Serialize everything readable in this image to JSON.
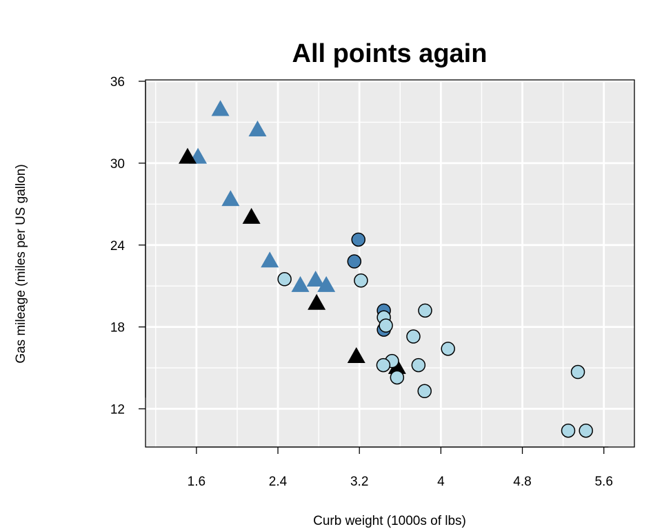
{
  "chart_data": {
    "type": "scatter",
    "title": "All points again",
    "xlabel": "Curb weight (1000s of lbs)",
    "ylabel": "Gas mileage (miles per US gallon)",
    "xlim": [
      1.1,
      5.9
    ],
    "ylim": [
      9.2,
      36.1
    ],
    "xticks": [
      1.6,
      2.4,
      3.2,
      4.0,
      4.8,
      5.6
    ],
    "xtick_labels": [
      "1.6",
      "2.4",
      "3.2",
      "4",
      "4.8",
      "5.6"
    ],
    "yticks": [
      12,
      18,
      24,
      30,
      36
    ],
    "ytick_labels": [
      "12",
      "18",
      "24",
      "30",
      "36"
    ],
    "grid": true,
    "background_color": "#EBEBEB",
    "series": [
      {
        "marker": "triangle",
        "color": "#4682B4",
        "points": [
          {
            "x": 1.835,
            "y": 33.9
          },
          {
            "x": 2.2,
            "y": 32.4
          },
          {
            "x": 1.615,
            "y": 30.4
          },
          {
            "x": 1.935,
            "y": 27.3
          },
          {
            "x": 2.32,
            "y": 22.8
          },
          {
            "x": 2.62,
            "y": 21.0
          },
          {
            "x": 2.77,
            "y": 21.4
          },
          {
            "x": 2.875,
            "y": 21.0
          }
        ]
      },
      {
        "marker": "triangle",
        "color": "#000000",
        "points": [
          {
            "x": 1.513,
            "y": 30.4
          },
          {
            "x": 2.14,
            "y": 26.0
          },
          {
            "x": 2.78,
            "y": 19.7
          },
          {
            "x": 3.17,
            "y": 15.8
          },
          {
            "x": 3.57,
            "y": 15.0
          }
        ]
      },
      {
        "marker": "circle",
        "color": "#4682B4",
        "points": [
          {
            "x": 3.19,
            "y": 24.4
          },
          {
            "x": 3.15,
            "y": 22.8
          },
          {
            "x": 3.44,
            "y": 19.2
          },
          {
            "x": 3.44,
            "y": 17.8
          }
        ]
      },
      {
        "marker": "circle",
        "color": "#ADD8E6",
        "points": [
          {
            "x": 2.465,
            "y": 21.5
          },
          {
            "x": 3.215,
            "y": 21.4
          },
          {
            "x": 3.44,
            "y": 18.7
          },
          {
            "x": 3.46,
            "y": 18.1
          },
          {
            "x": 3.52,
            "y": 15.5
          },
          {
            "x": 3.435,
            "y": 15.2
          },
          {
            "x": 3.57,
            "y": 14.3
          },
          {
            "x": 3.73,
            "y": 17.3
          },
          {
            "x": 3.78,
            "y": 15.2
          },
          {
            "x": 3.845,
            "y": 19.2
          },
          {
            "x": 3.84,
            "y": 13.3
          },
          {
            "x": 4.07,
            "y": 16.4
          },
          {
            "x": 5.25,
            "y": 10.4
          },
          {
            "x": 5.424,
            "y": 10.4
          },
          {
            "x": 5.345,
            "y": 14.7
          }
        ]
      }
    ]
  }
}
